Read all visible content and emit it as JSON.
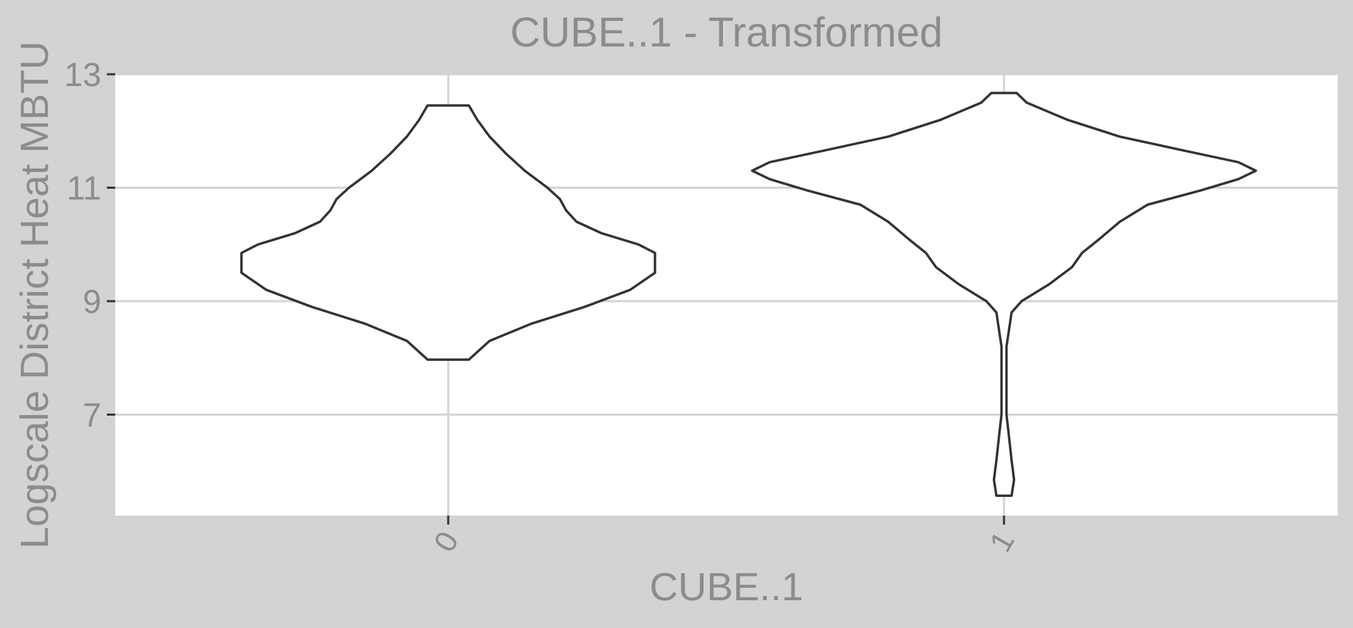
{
  "chart_data": {
    "type": "violin",
    "title": "CUBE..1 - Transformed",
    "xlabel": "CUBE..1",
    "ylabel": "Logscale District Heat MBTU",
    "categories": [
      "0",
      "1"
    ],
    "yticks": [
      7,
      9,
      11,
      13
    ],
    "ylim": [
      5.4,
      13.2
    ],
    "grid": true,
    "series": [
      {
        "category": "0",
        "profile": [
          [
            7.97,
            0.1
          ],
          [
            8.3,
            0.2
          ],
          [
            8.6,
            0.4
          ],
          [
            8.9,
            0.66
          ],
          [
            9.2,
            0.88
          ],
          [
            9.5,
            1.0
          ],
          [
            9.7,
            1.0
          ],
          [
            9.85,
            1.0
          ],
          [
            10.0,
            0.92
          ],
          [
            10.2,
            0.74
          ],
          [
            10.4,
            0.62
          ],
          [
            10.6,
            0.57
          ],
          [
            10.8,
            0.54
          ],
          [
            11.0,
            0.48
          ],
          [
            11.3,
            0.37
          ],
          [
            11.6,
            0.28
          ],
          [
            11.9,
            0.2
          ],
          [
            12.2,
            0.14
          ],
          [
            12.45,
            0.1
          ]
        ]
      },
      {
        "category": "1",
        "profile": [
          [
            5.57,
            0.03
          ],
          [
            5.85,
            0.04
          ],
          [
            6.2,
            0.03
          ],
          [
            6.6,
            0.02
          ],
          [
            7.0,
            0.01
          ],
          [
            7.5,
            0.01
          ],
          [
            7.8,
            0.01
          ],
          [
            8.2,
            0.01
          ],
          [
            8.5,
            0.02
          ],
          [
            8.8,
            0.03
          ],
          [
            9.0,
            0.07
          ],
          [
            9.3,
            0.18
          ],
          [
            9.6,
            0.27
          ],
          [
            9.85,
            0.31
          ],
          [
            10.1,
            0.38
          ],
          [
            10.4,
            0.46
          ],
          [
            10.7,
            0.57
          ],
          [
            10.95,
            0.78
          ],
          [
            11.15,
            0.93
          ],
          [
            11.3,
            1.0
          ],
          [
            11.45,
            0.93
          ],
          [
            11.65,
            0.72
          ],
          [
            11.9,
            0.46
          ],
          [
            12.2,
            0.25
          ],
          [
            12.5,
            0.09
          ],
          [
            12.67,
            0.05
          ]
        ]
      }
    ]
  }
}
